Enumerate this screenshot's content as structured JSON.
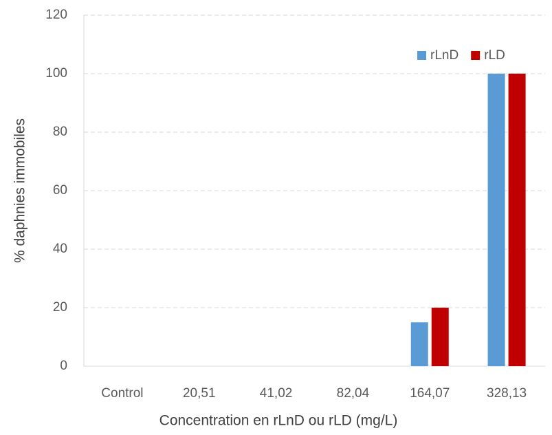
{
  "chart_data": {
    "type": "bar",
    "xlabel": "Concentration en rLnD ou rLD (mg/L)",
    "ylabel": "% daphnies immobiles",
    "categories": [
      "Control",
      "20,51",
      "41,02",
      "82,04",
      "164,07",
      "328,13"
    ],
    "series": [
      {
        "name": "rLnD",
        "color": "#5b9bd5",
        "values": [
          0,
          0,
          0,
          0,
          15,
          100
        ]
      },
      {
        "name": "rLD",
        "color": "#c00000",
        "values": [
          0,
          0,
          0,
          0,
          20,
          100
        ]
      }
    ],
    "ylim": [
      0,
      120
    ],
    "yticks": [
      0,
      20,
      40,
      60,
      80,
      100,
      120
    ],
    "grid": true,
    "legend": "top-right"
  }
}
